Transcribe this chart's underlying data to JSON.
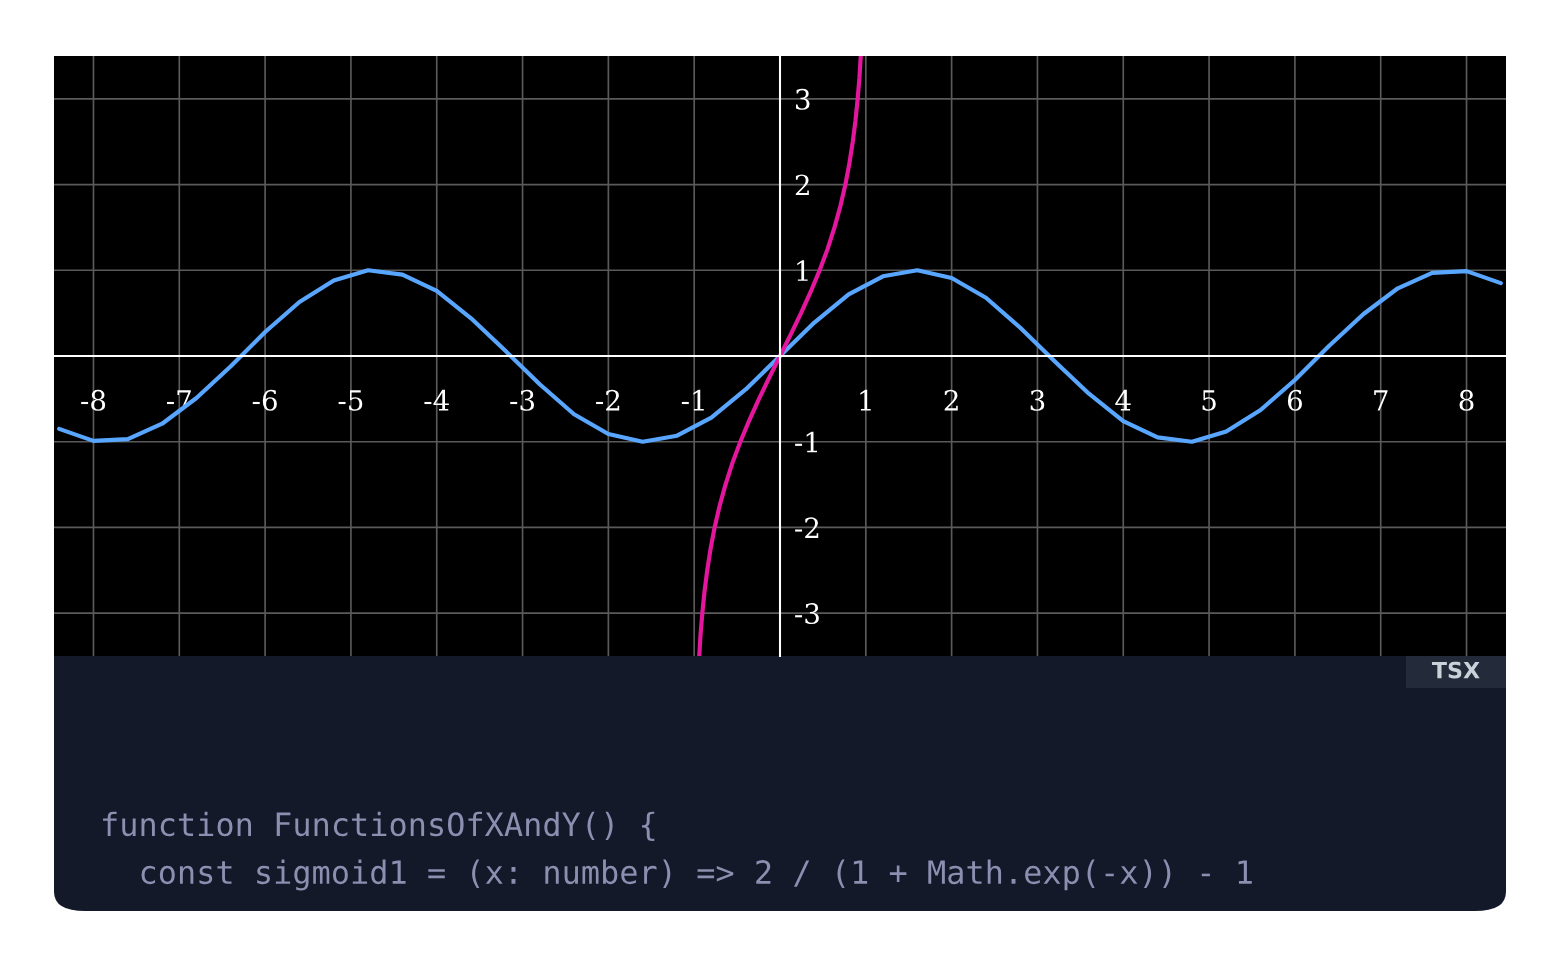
{
  "chart_data": {
    "type": "line",
    "xlim": [
      -8.46,
      8.46
    ],
    "ylim": [
      -3.5,
      3.5
    ],
    "xticks": [
      -8,
      -7,
      -6,
      -5,
      -4,
      -3,
      -2,
      -1,
      1,
      2,
      3,
      4,
      5,
      6,
      7,
      8
    ],
    "yticks": [
      -3,
      -2,
      -1,
      1,
      2,
      3
    ],
    "grid": true,
    "series": [
      {
        "color": "#58a6ff",
        "x": [
          -8.4,
          -8.0,
          -7.6,
          -7.2,
          -6.8,
          -6.4,
          -6.0,
          -5.6,
          -5.2,
          -4.8,
          -4.4,
          -4.0,
          -3.6,
          -3.2,
          -2.8,
          -2.4,
          -2.0,
          -1.6,
          -1.2,
          -0.8,
          -0.4,
          0,
          0.4,
          0.8,
          1.2,
          1.6,
          2.0,
          2.4,
          2.8,
          3.2,
          3.6,
          4.0,
          4.4,
          4.8,
          5.2,
          5.6,
          6.0,
          6.4,
          6.8,
          7.2,
          7.6,
          8.0,
          8.4
        ],
        "values": [
          -0.85,
          -0.99,
          -0.97,
          -0.79,
          -0.49,
          -0.12,
          0.28,
          0.63,
          0.88,
          1.0,
          0.95,
          0.76,
          0.44,
          0.06,
          -0.33,
          -0.68,
          -0.91,
          -1.0,
          -0.93,
          -0.72,
          -0.39,
          0,
          0.39,
          0.72,
          0.93,
          1.0,
          0.91,
          0.68,
          0.33,
          -0.06,
          -0.44,
          -0.76,
          -0.95,
          -1.0,
          -0.88,
          -0.63,
          -0.28,
          0.12,
          0.49,
          0.79,
          0.97,
          0.99,
          0.85
        ]
      },
      {
        "color": "#e5169e",
        "x": [
          -0.941,
          -0.926,
          -0.905,
          -0.88,
          -0.848,
          -0.809,
          -0.762,
          -0.704,
          -0.635,
          -0.555,
          -0.462,
          -0.358,
          -0.245,
          -0.124,
          0,
          0.124,
          0.245,
          0.358,
          0.462,
          0.555,
          0.635,
          0.704,
          0.762,
          0.809,
          0.848,
          0.88,
          0.905,
          0.926,
          0.941
        ],
        "values": [
          -3.5,
          -3.25,
          -3.0,
          -2.75,
          -2.5,
          -2.25,
          -2.0,
          -1.75,
          -1.5,
          -1.25,
          -1.0,
          -0.75,
          -0.5,
          -0.25,
          0,
          0.25,
          0.5,
          0.75,
          1.0,
          1.25,
          1.5,
          1.75,
          2.0,
          2.25,
          2.5,
          2.75,
          3.0,
          3.25,
          3.5
        ]
      }
    ],
    "annotations": [
      "TSX",
      "function FunctionsOfXAndY() {",
      "  const sigmoid1 = (x: number) => 2 / (1 + Math.exp(-x)) - 1"
    ]
  }
}
